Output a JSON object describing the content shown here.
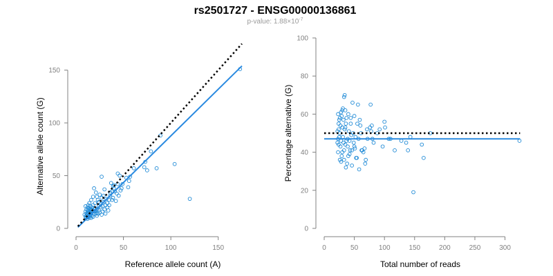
{
  "title": "rs2501727 - ENSG00000136861",
  "subtitle": {
    "prefix": "p-value: 1.88×10",
    "exponent": "-7"
  },
  "colors": {
    "points": "#1f8ad6",
    "fit_line": "#2a8ae0",
    "reference_line": "#000000",
    "axis": "#808080"
  },
  "chart_data": [
    {
      "type": "scatter",
      "xlabel": "Reference allele count (A)",
      "ylabel": "Alternative allele count (G)",
      "xlim": [
        0,
        175
      ],
      "ylim": [
        0,
        155
      ],
      "xticks": [
        0,
        50,
        100,
        150
      ],
      "yticks": [
        0,
        50,
        100,
        150
      ],
      "grid": false,
      "lines": [
        {
          "kind": "fit",
          "style": "solid",
          "x": [
            2,
            175
          ],
          "y": [
            1,
            154
          ]
        },
        {
          "kind": "reference",
          "style": "dotted",
          "x": [
            2,
            175
          ],
          "y": [
            2,
            175
          ]
        }
      ],
      "points": [
        [
          173,
          151
        ],
        [
          120,
          28
        ],
        [
          104,
          61
        ],
        [
          89,
          88
        ],
        [
          85,
          57
        ],
        [
          79,
          73
        ],
        [
          75,
          55
        ],
        [
          72,
          58
        ],
        [
          73,
          63
        ],
        [
          61,
          57
        ],
        [
          56,
          45
        ],
        [
          57,
          49
        ],
        [
          55,
          39
        ],
        [
          48,
          38
        ],
        [
          46,
          50
        ],
        [
          44,
          52
        ],
        [
          44,
          42
        ],
        [
          43,
          33
        ],
        [
          42,
          26
        ],
        [
          40,
          41
        ],
        [
          40,
          38
        ],
        [
          39,
          40
        ],
        [
          38,
          35
        ],
        [
          37,
          43
        ],
        [
          36,
          31
        ],
        [
          35,
          27
        ],
        [
          33,
          24
        ],
        [
          32,
          28
        ],
        [
          31,
          22
        ],
        [
          30,
          37
        ],
        [
          29,
          25
        ],
        [
          28,
          21
        ],
        [
          27,
          49
        ],
        [
          27,
          29
        ],
        [
          26,
          20
        ],
        [
          25,
          32
        ],
        [
          24,
          25
        ],
        [
          24,
          17
        ],
        [
          23,
          27
        ],
        [
          22,
          18
        ],
        [
          22,
          30
        ],
        [
          21,
          34
        ],
        [
          21,
          14
        ],
        [
          20,
          24
        ],
        [
          20,
          19
        ],
        [
          19,
          38
        ],
        [
          19,
          16
        ],
        [
          18,
          22
        ],
        [
          18,
          30
        ],
        [
          17,
          12
        ],
        [
          17,
          20
        ],
        [
          16,
          27
        ],
        [
          16,
          18
        ],
        [
          16,
          14
        ],
        [
          15,
          21
        ],
        [
          15,
          12
        ],
        [
          15,
          16
        ],
        [
          14,
          24
        ],
        [
          14,
          19
        ],
        [
          14,
          13
        ],
        [
          14,
          10
        ],
        [
          13,
          22
        ],
        [
          13,
          17
        ],
        [
          13,
          15
        ],
        [
          13,
          11
        ],
        [
          12,
          20
        ],
        [
          12,
          15
        ],
        [
          12,
          13
        ],
        [
          12,
          9
        ],
        [
          11,
          18
        ],
        [
          11,
          14
        ],
        [
          11,
          12
        ],
        [
          10,
          16
        ],
        [
          10,
          21
        ],
        [
          10,
          11
        ],
        [
          9,
          13
        ],
        [
          15,
          18
        ],
        [
          17,
          16
        ],
        [
          19,
          14
        ],
        [
          21,
          17
        ],
        [
          23,
          14
        ],
        [
          25,
          15
        ],
        [
          27,
          13
        ],
        [
          28,
          16
        ],
        [
          30,
          18
        ],
        [
          31,
          14
        ],
        [
          33,
          20
        ],
        [
          34,
          17
        ],
        [
          35,
          22
        ],
        [
          38,
          27
        ],
        [
          41,
          35
        ],
        [
          39,
          29
        ],
        [
          45,
          31
        ],
        [
          47,
          36
        ],
        [
          49,
          42
        ],
        [
          53,
          48
        ],
        [
          36,
          34
        ],
        [
          29,
          31
        ],
        [
          26,
          23
        ],
        [
          24,
          21
        ],
        [
          22,
          12
        ],
        [
          20,
          16
        ],
        [
          18,
          11
        ],
        [
          16,
          10
        ],
        [
          14,
          15
        ],
        [
          13,
          19
        ],
        [
          12,
          11
        ],
        [
          11,
          10
        ],
        [
          15,
          14
        ],
        [
          17,
          18
        ]
      ]
    },
    {
      "type": "scatter",
      "xlabel": "Total number of reads",
      "ylabel": "Percentage alternative (G)",
      "xlim": [
        0,
        320
      ],
      "ylim": [
        0,
        100
      ],
      "xticks": [
        0,
        50,
        100,
        150,
        200,
        250,
        300
      ],
      "yticks": [
        0,
        20,
        40,
        60,
        80,
        100
      ],
      "grid": false,
      "lines": [
        {
          "kind": "fit",
          "style": "solid",
          "x": [
            0,
            325
          ],
          "y": [
            47,
            47
          ]
        },
        {
          "kind": "reference",
          "style": "dotted",
          "x": [
            0,
            325
          ],
          "y": [
            50,
            50
          ]
        }
      ],
      "points": [
        [
          324,
          46
        ],
        [
          176,
          50
        ],
        [
          165,
          37
        ],
        [
          162,
          44
        ],
        [
          148,
          19
        ],
        [
          143,
          48
        ],
        [
          139,
          41
        ],
        [
          136,
          45
        ],
        [
          128,
          46
        ],
        [
          117,
          41
        ],
        [
          110,
          47
        ],
        [
          107,
          47
        ],
        [
          101,
          53
        ],
        [
          100,
          56
        ],
        [
          97,
          43
        ],
        [
          92,
          52
        ],
        [
          88,
          50
        ],
        [
          82,
          45
        ],
        [
          80,
          47
        ],
        [
          79,
          54
        ],
        [
          78,
          51
        ],
        [
          77,
          65
        ],
        [
          76,
          53
        ],
        [
          72,
          47
        ],
        [
          71,
          52
        ],
        [
          69,
          36
        ],
        [
          68,
          34
        ],
        [
          67,
          42
        ],
        [
          65,
          40
        ],
        [
          63,
          41
        ],
        [
          62,
          41
        ],
        [
          61,
          50
        ],
        [
          60,
          54
        ],
        [
          59,
          57
        ],
        [
          58,
          31
        ],
        [
          57,
          47
        ],
        [
          56,
          65
        ],
        [
          55,
          55
        ],
        [
          54,
          37
        ],
        [
          52,
          48
        ],
        [
          51,
          42
        ],
        [
          50,
          43
        ],
        [
          49,
          45
        ],
        [
          48,
          50
        ],
        [
          47,
          66
        ],
        [
          46,
          33
        ],
        [
          45,
          49
        ],
        [
          44,
          55
        ],
        [
          43,
          41
        ],
        [
          42,
          39
        ],
        [
          41,
          51
        ],
        [
          40,
          60
        ],
        [
          39,
          47
        ],
        [
          38,
          34
        ],
        [
          37,
          46
        ],
        [
          36,
          32
        ],
        [
          36,
          55
        ],
        [
          35,
          44
        ],
        [
          35,
          62
        ],
        [
          34,
          70
        ],
        [
          34,
          52
        ],
        [
          33,
          69
        ],
        [
          33,
          41
        ],
        [
          32,
          57
        ],
        [
          32,
          45
        ],
        [
          31,
          48
        ],
        [
          31,
          63
        ],
        [
          30,
          40
        ],
        [
          30,
          53
        ],
        [
          29,
          59
        ],
        [
          29,
          38
        ],
        [
          28,
          46
        ],
        [
          28,
          61
        ],
        [
          27,
          43
        ],
        [
          27,
          54
        ],
        [
          26,
          50
        ],
        [
          26,
          36
        ],
        [
          25,
          48
        ],
        [
          25,
          57
        ],
        [
          24,
          44
        ],
        [
          24,
          52
        ],
        [
          23,
          40
        ],
        [
          23,
          60
        ],
        [
          23,
          47
        ],
        [
          22,
          51
        ],
        [
          22,
          45
        ],
        [
          26,
          58
        ],
        [
          28,
          35
        ],
        [
          30,
          62
        ],
        [
          33,
          36
        ],
        [
          35,
          53
        ],
        [
          37,
          58
        ],
        [
          39,
          43
        ],
        [
          40,
          38
        ],
        [
          42,
          46
        ],
        [
          44,
          58
        ],
        [
          46,
          41
        ],
        [
          50,
          59
        ],
        [
          53,
          37
        ],
        [
          24,
          55
        ]
      ]
    }
  ]
}
